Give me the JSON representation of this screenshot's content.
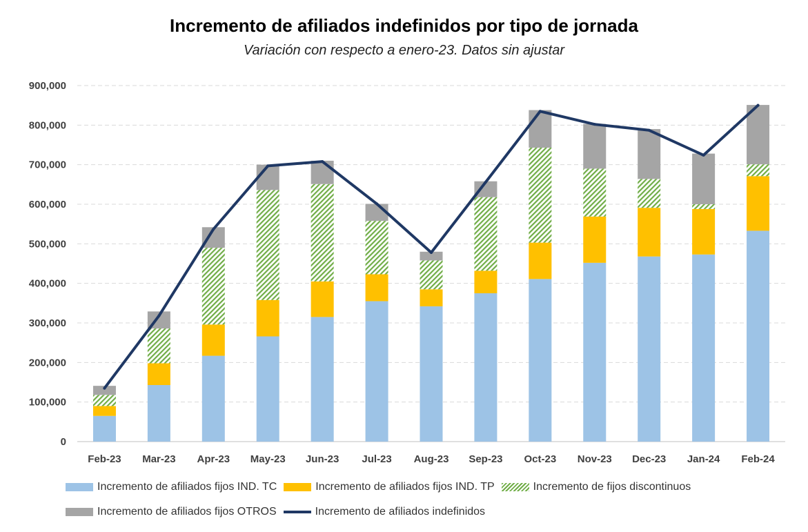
{
  "title": "Incremento de afiliados indefinidos por tipo de jornada",
  "subtitle": "Variación con respecto a enero-23. Datos sin ajustar",
  "colors": {
    "tc": "#9DC3E6",
    "tp": "#FFC000",
    "disc": "#70AD47",
    "otros": "#A5A5A5",
    "total": "#1F3864",
    "grid": "#D9D9D9",
    "axis_text": "#404040"
  },
  "chart_data": {
    "type": "bar",
    "stacked": true,
    "categories": [
      "Feb-23",
      "Mar-23",
      "Apr-23",
      "May-23",
      "Jun-23",
      "Jul-23",
      "Aug-23",
      "Sep-23",
      "Oct-23",
      "Nov-23",
      "Dec-23",
      "Jan-24",
      "Feb-24"
    ],
    "ylim": [
      0,
      900000
    ],
    "yticks": [
      0,
      100000,
      200000,
      300000,
      400000,
      500000,
      600000,
      700000,
      800000,
      900000
    ],
    "ytick_labels": [
      "0",
      "100,000",
      "200,000",
      "300,000",
      "400,000",
      "500,000",
      "600,000",
      "700,000",
      "800,000",
      "900,000"
    ],
    "grid": true,
    "legend_position": "bottom",
    "series": [
      {
        "name": "Incremento de afiliados fijos IND. TC",
        "kind": "bar",
        "color_key": "tc",
        "values": [
          65000,
          143000,
          217000,
          266000,
          315000,
          355000,
          342000,
          375000,
          411000,
          452000,
          468000,
          473000,
          533000
        ]
      },
      {
        "name": "Incremento de afiliados fijos IND. TP",
        "kind": "bar",
        "color_key": "tp",
        "values": [
          25000,
          55000,
          79000,
          92000,
          90000,
          68000,
          43000,
          57000,
          92000,
          117000,
          123000,
          115000,
          138000
        ]
      },
      {
        "name": "Incremento de fijos discontinuos",
        "kind": "bar",
        "color_key": "disc",
        "pattern": "hatch",
        "values": [
          28000,
          88000,
          194000,
          278000,
          246000,
          135000,
          73000,
          186000,
          240000,
          121000,
          73000,
          12000,
          30000
        ]
      },
      {
        "name": "Incremento de afiliados fijos OTROS",
        "kind": "bar",
        "color_key": "otros",
        "values": [
          23000,
          43000,
          52000,
          64000,
          59000,
          43000,
          22000,
          40000,
          95000,
          113000,
          126000,
          128000,
          150000
        ]
      },
      {
        "name": "Incremento de afiliados indefinidos",
        "kind": "line",
        "color_key": "total",
        "values": [
          135000,
          318000,
          537000,
          697000,
          708000,
          601000,
          478000,
          656000,
          835000,
          802000,
          787000,
          724000,
          850000
        ]
      }
    ]
  }
}
